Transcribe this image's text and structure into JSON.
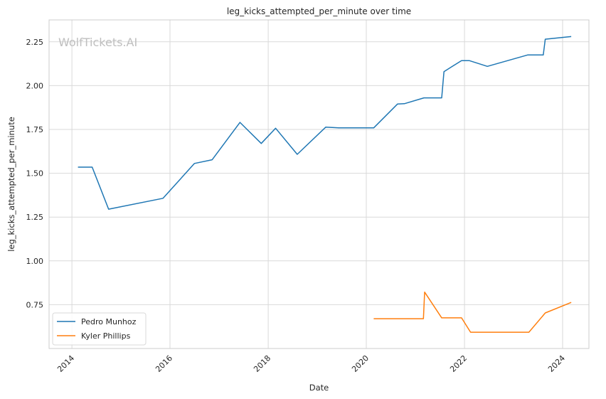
{
  "chart_data": {
    "type": "line",
    "title": "leg_kicks_attempted_per_minute over time",
    "xlabel": "Date",
    "ylabel": "leg_kicks_attempted_per_minute",
    "watermark": "WolfTickets.AI",
    "xlim": [
      "2013-07-15",
      "2024-07-15"
    ],
    "ylim": [
      0.5,
      2.375
    ],
    "x_ticks": [
      "2014-01-01",
      "2016-01-01",
      "2018-01-01",
      "2020-01-01",
      "2022-01-01",
      "2024-01-01"
    ],
    "x_tick_labels": [
      "2014",
      "2016",
      "2018",
      "2020",
      "2022",
      "2024"
    ],
    "y_ticks": [
      0.75,
      1.0,
      1.25,
      1.5,
      1.75,
      2.0,
      2.25
    ],
    "y_tick_labels": [
      "0.75",
      "1.00",
      "1.25",
      "1.50",
      "1.75",
      "2.00",
      "2.25"
    ],
    "grid": true,
    "legend_position": "bottom-left",
    "series": [
      {
        "name": "Pedro Munhoz",
        "color": "#1f77b4",
        "points": [
          [
            "2014-02-15",
            1.535
          ],
          [
            "2014-06-01",
            1.535
          ],
          [
            "2014-10-01",
            1.295
          ],
          [
            "2015-11-10",
            1.357
          ],
          [
            "2016-07-01",
            1.556
          ],
          [
            "2016-11-10",
            1.577
          ],
          [
            "2017-06-05",
            1.79
          ],
          [
            "2017-11-10",
            1.67
          ],
          [
            "2018-02-25",
            1.757
          ],
          [
            "2018-08-05",
            1.608
          ],
          [
            "2019-03-05",
            1.763
          ],
          [
            "2019-06-10",
            1.759
          ],
          [
            "2020-02-25",
            1.759
          ],
          [
            "2020-08-20",
            1.895
          ],
          [
            "2020-10-10",
            1.897
          ],
          [
            "2021-03-05",
            1.93
          ],
          [
            "2021-07-15",
            1.93
          ],
          [
            "2021-08-01",
            2.08
          ],
          [
            "2021-12-10",
            2.143
          ],
          [
            "2022-02-05",
            2.143
          ],
          [
            "2022-06-20",
            2.11
          ],
          [
            "2023-04-15",
            2.175
          ],
          [
            "2023-08-10",
            2.175
          ],
          [
            "2023-08-25",
            2.265
          ],
          [
            "2024-03-05",
            2.28
          ]
        ]
      },
      {
        "name": "Kyler Phillips",
        "color": "#ff7f0e",
        "points": [
          [
            "2020-02-25",
            0.67
          ],
          [
            "2021-03-01",
            0.67
          ],
          [
            "2021-03-10",
            0.822
          ],
          [
            "2021-07-15",
            0.675
          ],
          [
            "2021-12-10",
            0.675
          ],
          [
            "2022-02-15",
            0.593
          ],
          [
            "2023-04-25",
            0.593
          ],
          [
            "2023-08-25",
            0.703
          ],
          [
            "2024-03-05",
            0.763
          ]
        ]
      }
    ]
  }
}
